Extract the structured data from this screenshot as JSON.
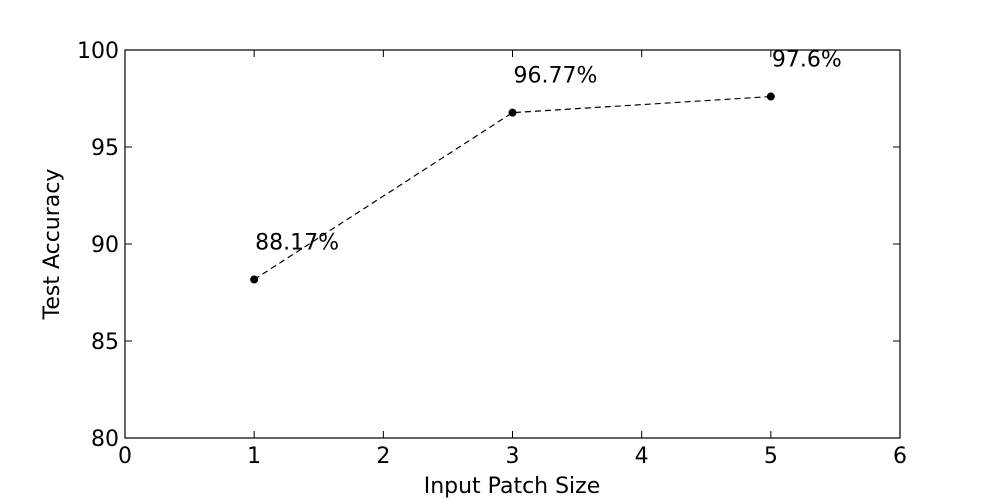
{
  "chart_data": {
    "type": "line",
    "title": "",
    "xlabel": "Input Patch Size",
    "ylabel": "Test Accuracy",
    "xlim": [
      0,
      6
    ],
    "ylim": [
      80,
      100
    ],
    "x_ticks": [
      0,
      1,
      2,
      3,
      4,
      5,
      6
    ],
    "y_ticks": [
      80,
      85,
      90,
      95,
      100
    ],
    "x_tick_labels": [
      "0",
      "1",
      "2",
      "3",
      "4",
      "5",
      "6"
    ],
    "y_tick_labels": [
      "80",
      "85",
      "90",
      "95",
      "100"
    ],
    "grid": false,
    "legend": "none",
    "series": [
      {
        "x": [
          1,
          3,
          5
        ],
        "y": [
          88.17,
          96.77,
          97.6
        ],
        "labels": [
          "88.17%",
          "96.77%",
          "97.6%"
        ],
        "line_style": "dashed",
        "marker": "circle",
        "color": "#000000"
      }
    ]
  }
}
